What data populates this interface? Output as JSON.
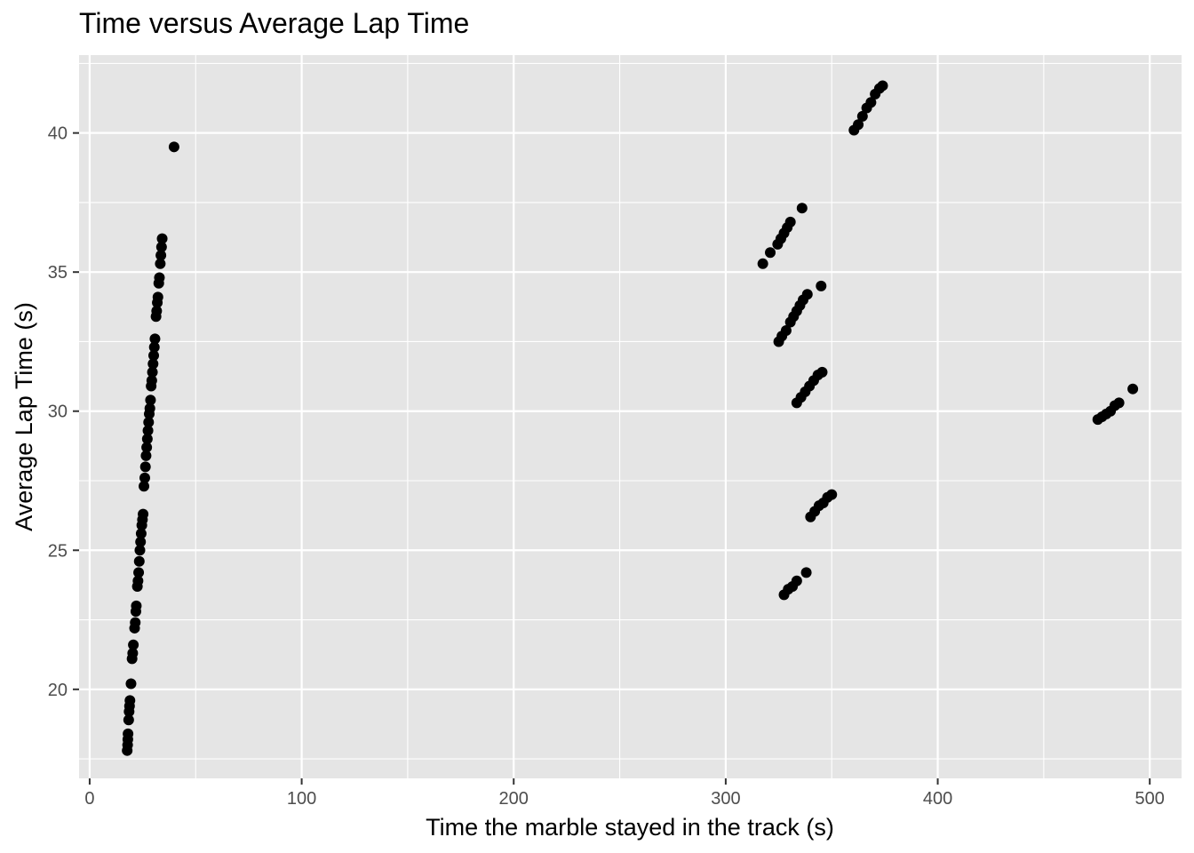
{
  "chart_data": {
    "type": "scatter",
    "title": "Time versus Average Lap Time",
    "xlabel": "Time the marble stayed in the track (s)",
    "ylabel": "Average Lap Time (s)",
    "xlim": [
      -5,
      515
    ],
    "ylim": [
      16.8,
      42.8
    ],
    "xticks": [
      0,
      100,
      200,
      300,
      400,
      500
    ],
    "yticks": [
      20,
      25,
      30,
      35,
      40
    ],
    "xtick_labels": [
      "0",
      "100",
      "200",
      "300",
      "400",
      "500"
    ],
    "ytick_labels": [
      "20",
      "25",
      "30",
      "35",
      "40"
    ],
    "grid": true,
    "panel_color": "#e5e5e5",
    "grid_color": "#ffffff",
    "point_color": "#000000",
    "series": [
      {
        "points": [
          [
            17.7,
            17.8
          ],
          [
            17.9,
            18.0
          ],
          [
            18.0,
            18.2
          ],
          [
            18.1,
            18.4
          ],
          [
            18.4,
            18.9
          ],
          [
            18.6,
            19.2
          ],
          [
            18.8,
            19.4
          ],
          [
            19.0,
            19.6
          ],
          [
            19.5,
            20.2
          ],
          [
            20.0,
            21.1
          ],
          [
            20.3,
            21.3
          ],
          [
            20.6,
            21.6
          ],
          [
            21.2,
            22.2
          ],
          [
            21.5,
            22.4
          ],
          [
            21.8,
            22.8
          ],
          [
            22.0,
            23.0
          ],
          [
            22.5,
            23.7
          ],
          [
            22.8,
            23.9
          ],
          [
            23.1,
            24.2
          ],
          [
            23.4,
            24.6
          ],
          [
            23.7,
            25.0
          ],
          [
            24.0,
            25.3
          ],
          [
            24.3,
            25.6
          ],
          [
            24.6,
            25.9
          ],
          [
            24.9,
            26.1
          ],
          [
            25.2,
            26.3
          ],
          [
            25.6,
            27.3
          ],
          [
            26.0,
            27.6
          ],
          [
            26.3,
            28.0
          ],
          [
            26.6,
            28.4
          ],
          [
            26.9,
            28.7
          ],
          [
            27.2,
            29.0
          ],
          [
            27.5,
            29.3
          ],
          [
            27.8,
            29.6
          ],
          [
            28.1,
            29.9
          ],
          [
            28.4,
            30.1
          ],
          [
            28.7,
            30.4
          ],
          [
            29.0,
            30.9
          ],
          [
            29.3,
            31.1
          ],
          [
            29.6,
            31.4
          ],
          [
            29.9,
            31.7
          ],
          [
            30.2,
            32.0
          ],
          [
            30.5,
            32.3
          ],
          [
            30.8,
            32.6
          ],
          [
            31.3,
            33.4
          ],
          [
            31.6,
            33.6
          ],
          [
            31.9,
            33.9
          ],
          [
            32.2,
            34.1
          ],
          [
            32.6,
            34.6
          ],
          [
            32.9,
            34.8
          ],
          [
            33.3,
            35.3
          ],
          [
            33.6,
            35.6
          ],
          [
            33.9,
            35.9
          ],
          [
            34.2,
            36.2
          ],
          [
            39.8,
            39.5
          ]
        ]
      },
      {
        "points": [
          [
            317.5,
            35.3
          ],
          [
            321.0,
            35.7
          ],
          [
            324.5,
            36.0
          ],
          [
            326.0,
            36.2
          ],
          [
            327.5,
            36.4
          ],
          [
            329.0,
            36.6
          ],
          [
            330.5,
            36.8
          ],
          [
            336.0,
            37.3
          ],
          [
            325.0,
            32.5
          ],
          [
            326.5,
            32.7
          ],
          [
            328.5,
            32.9
          ],
          [
            330.5,
            33.2
          ],
          [
            332.0,
            33.4
          ],
          [
            333.5,
            33.6
          ],
          [
            335.0,
            33.8
          ],
          [
            336.5,
            34.0
          ],
          [
            338.5,
            34.2
          ],
          [
            345.0,
            34.5
          ],
          [
            333.5,
            30.3
          ],
          [
            335.5,
            30.5
          ],
          [
            337.5,
            30.7
          ],
          [
            339.5,
            30.9
          ],
          [
            341.5,
            31.1
          ],
          [
            343.5,
            31.3
          ],
          [
            345.5,
            31.4
          ],
          [
            340.0,
            26.2
          ],
          [
            342.0,
            26.4
          ],
          [
            344.0,
            26.6
          ],
          [
            346.0,
            26.7
          ],
          [
            348.0,
            26.9
          ],
          [
            350.0,
            27.0
          ],
          [
            327.5,
            23.4
          ],
          [
            329.5,
            23.6
          ],
          [
            331.5,
            23.7
          ],
          [
            333.5,
            23.9
          ],
          [
            338.0,
            24.2
          ],
          [
            360.5,
            40.1
          ],
          [
            362.5,
            40.3
          ],
          [
            364.5,
            40.6
          ],
          [
            366.5,
            40.9
          ],
          [
            368.5,
            41.1
          ],
          [
            370.5,
            41.4
          ],
          [
            372.5,
            41.6
          ],
          [
            374.0,
            41.7
          ],
          [
            475.5,
            29.7
          ],
          [
            477.5,
            29.8
          ],
          [
            479.5,
            29.9
          ],
          [
            481.5,
            30.0
          ],
          [
            483.5,
            30.2
          ],
          [
            485.5,
            30.3
          ],
          [
            492.0,
            30.8
          ]
        ]
      }
    ]
  }
}
